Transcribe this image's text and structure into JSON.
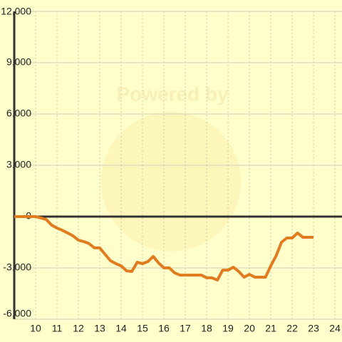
{
  "chart_data": {
    "type": "line",
    "watermark": "Powered by",
    "x": [
      9,
      9.5,
      10,
      10.25,
      10.5,
      10.75,
      11,
      11.25,
      11.5,
      11.75,
      12,
      12.25,
      12.5,
      12.75,
      13,
      13.25,
      13.5,
      13.75,
      14,
      14.25,
      14.5,
      14.75,
      15,
      15.25,
      15.5,
      15.75,
      16,
      16.25,
      16.5,
      16.75,
      17,
      17.25,
      17.5,
      17.75,
      18,
      18.25,
      18.5,
      18.75,
      19,
      19.25,
      19.5,
      19.75,
      20,
      20.25,
      20.5,
      20.75,
      21,
      21.25,
      21.5,
      21.75,
      22,
      22.25,
      22.5,
      22.75,
      23
    ],
    "series": [
      {
        "color": "#e07b1f",
        "values": [
          0,
          0,
          0,
          -80,
          -170,
          -500,
          -670,
          -800,
          -960,
          -1130,
          -1380,
          -1460,
          -1580,
          -1830,
          -1830,
          -2210,
          -2580,
          -2750,
          -2880,
          -3170,
          -3210,
          -2670,
          -2750,
          -2630,
          -2330,
          -2710,
          -3000,
          -3000,
          -3290,
          -3420,
          -3420,
          -3420,
          -3420,
          -3420,
          -3580,
          -3580,
          -3710,
          -3130,
          -3130,
          -2960,
          -3210,
          -3540,
          -3380,
          -3540,
          -3540,
          -3540,
          -2880,
          -2290,
          -1500,
          -1250,
          -1250,
          -960,
          -1210,
          -1210,
          -1210
        ]
      }
    ],
    "xlim": [
      9,
      24.33
    ],
    "xticks": [
      10,
      11,
      12,
      13,
      14,
      15,
      16,
      17,
      18,
      19,
      20,
      21,
      22,
      23,
      24
    ],
    "ylim": [
      -6000,
      12000
    ],
    "yticks": [
      {
        "value": -6000,
        "label": "-6,000"
      },
      {
        "value": -3000,
        "label": "-3,000"
      },
      0,
      {
        "value": 3000,
        "label": "3,000"
      },
      {
        "value": 6000,
        "label": "6,000"
      },
      {
        "value": 9000,
        "label": "9,000"
      },
      {
        "value": 12000,
        "label": "12,000"
      }
    ],
    "grid": true
  }
}
